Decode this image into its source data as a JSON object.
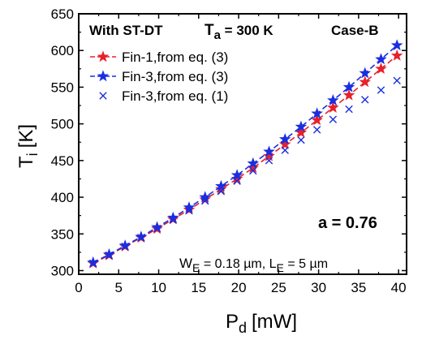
{
  "chart_data": {
    "type": "line",
    "title": "",
    "xlabel": "P",
    "xlabel_sub": "d",
    "xlabel_unit": "[mW]",
    "ylabel": "T",
    "ylabel_sub": "i",
    "ylabel_unit": "[K]",
    "xlim": [
      0,
      41
    ],
    "ylim": [
      295,
      650
    ],
    "xticks": [
      0,
      5,
      10,
      15,
      20,
      25,
      30,
      35,
      40
    ],
    "yticks": [
      300,
      350,
      400,
      450,
      500,
      550,
      600,
      650
    ],
    "legend_position": "top-left",
    "grid": false,
    "annotations": {
      "top_left": "With ST-DT",
      "ta_prefix": "T",
      "ta_sub": "a",
      "ta_value": " = 300 K",
      "case": "Case-B",
      "a_value": "a = 0.76",
      "dims_w": "W",
      "dims_w_sub": "E",
      "dims_w_value": " = 0.18 µm, L",
      "dims_l_sub": "E",
      "dims_l_value": " = 5 µm"
    },
    "series": [
      {
        "name": "Fin-1,from eq. (3)",
        "color": "#e8202a",
        "marker": "star",
        "line": "dashed",
        "x": [
          1.8,
          3.8,
          5.8,
          7.8,
          9.8,
          11.8,
          13.8,
          15.8,
          17.8,
          19.8,
          21.8,
          23.8,
          25.8,
          27.8,
          29.8,
          31.8,
          33.8,
          35.8,
          37.8,
          39.8
        ],
        "y": [
          310,
          321,
          333,
          345,
          357,
          370,
          383,
          397,
          411,
          425,
          440,
          456,
          472,
          488,
          505,
          522,
          539,
          557,
          575,
          593
        ]
      },
      {
        "name": "Fin-3,from eq. (3)",
        "color": "#1a2ee0",
        "marker": "star",
        "line": "dashed",
        "x": [
          1.8,
          3.8,
          5.8,
          7.8,
          9.8,
          11.8,
          13.8,
          15.8,
          17.8,
          19.8,
          21.8,
          23.8,
          25.8,
          27.8,
          29.8,
          31.8,
          33.8,
          35.8,
          37.8,
          39.8
        ],
        "y": [
          311,
          322,
          334,
          346,
          359,
          372,
          386,
          400,
          415,
          430,
          446,
          462,
          479,
          496,
          514,
          532,
          550,
          569,
          588,
          607
        ]
      },
      {
        "name": "Fin-3,from eq. (1)",
        "color": "#1a2ee0",
        "marker": "x",
        "line": "none",
        "x": [
          1.8,
          3.8,
          5.8,
          7.8,
          9.8,
          11.8,
          13.8,
          15.8,
          17.8,
          19.8,
          21.8,
          23.8,
          25.8,
          27.8,
          29.8,
          31.8,
          33.8,
          35.8,
          37.8,
          39.8
        ],
        "y": [
          310,
          321,
          333,
          345,
          357,
          369,
          382,
          395,
          408,
          422,
          436,
          450,
          464,
          478,
          492,
          506,
          520,
          533,
          546,
          559
        ]
      }
    ]
  }
}
